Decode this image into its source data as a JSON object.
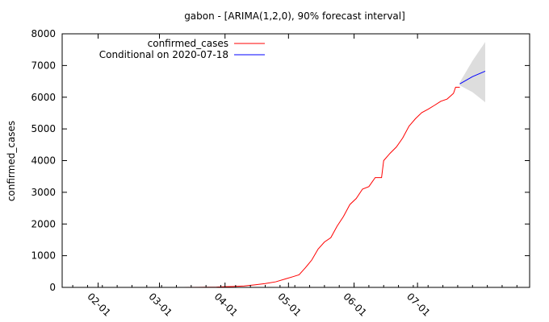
{
  "chart_data": {
    "type": "line",
    "title": "gabon -  [ARIMA(1,2,0), 90% forecast interval]",
    "xlabel": "",
    "ylabel": "confirmed_cases",
    "x_type": "date",
    "xlim": [
      "2020-01-15",
      "2020-08-23"
    ],
    "ylim": [
      0,
      8000
    ],
    "y_ticks": [
      0,
      1000,
      2000,
      3000,
      4000,
      5000,
      6000,
      7000,
      8000
    ],
    "y_tick_labels": [
      "0",
      "1000",
      "2000",
      "3000",
      "4000",
      "5000",
      "6000",
      "7000",
      "8000"
    ],
    "x_ticks": [
      "2020-02-01",
      "2020-03-01",
      "2020-04-01",
      "2020-05-01",
      "2020-06-01",
      "2020-07-01"
    ],
    "x_tick_labels": [
      "02-01",
      "03-01",
      "04-01",
      "05-01",
      "06-01",
      "07-01"
    ],
    "grid": false,
    "legend_position": "top-left",
    "colors": {
      "observed": "#ff0000",
      "forecast": "#0000ff",
      "interval": "#dddddd"
    },
    "series": [
      {
        "name": "confirmed_cases",
        "role": "observed",
        "points": [
          {
            "x": "2020-03-12",
            "y": 1
          },
          {
            "x": "2020-03-20",
            "y": 4
          },
          {
            "x": "2020-03-28",
            "y": 9
          },
          {
            "x": "2020-04-01",
            "y": 21
          },
          {
            "x": "2020-04-05",
            "y": 30
          },
          {
            "x": "2020-04-10",
            "y": 46
          },
          {
            "x": "2020-04-15",
            "y": 80
          },
          {
            "x": "2020-04-20",
            "y": 120
          },
          {
            "x": "2020-04-25",
            "y": 176
          },
          {
            "x": "2020-04-30",
            "y": 276
          },
          {
            "x": "2020-05-03",
            "y": 335
          },
          {
            "x": "2020-05-06",
            "y": 397
          },
          {
            "x": "2020-05-09",
            "y": 620
          },
          {
            "x": "2020-05-12",
            "y": 863
          },
          {
            "x": "2020-05-15",
            "y": 1209
          },
          {
            "x": "2020-05-18",
            "y": 1432
          },
          {
            "x": "2020-05-21",
            "y": 1567
          },
          {
            "x": "2020-05-24",
            "y": 1934
          },
          {
            "x": "2020-05-27",
            "y": 2238
          },
          {
            "x": "2020-05-30",
            "y": 2613
          },
          {
            "x": "2020-06-02",
            "y": 2803
          },
          {
            "x": "2020-06-05",
            "y": 3101
          },
          {
            "x": "2020-06-08",
            "y": 3180
          },
          {
            "x": "2020-06-11",
            "y": 3463
          },
          {
            "x": "2020-06-14",
            "y": 3463
          },
          {
            "x": "2020-06-15",
            "y": 4000
          },
          {
            "x": "2020-06-18",
            "y": 4229
          },
          {
            "x": "2020-06-21",
            "y": 4428
          },
          {
            "x": "2020-06-24",
            "y": 4714
          },
          {
            "x": "2020-06-27",
            "y": 5087
          },
          {
            "x": "2020-06-30",
            "y": 5320
          },
          {
            "x": "2020-07-03",
            "y": 5513
          },
          {
            "x": "2020-07-06",
            "y": 5620
          },
          {
            "x": "2020-07-09",
            "y": 5743
          },
          {
            "x": "2020-07-12",
            "y": 5871
          },
          {
            "x": "2020-07-15",
            "y": 5942
          },
          {
            "x": "2020-07-18",
            "y": 6121
          },
          {
            "x": "2020-07-19",
            "y": 6315
          },
          {
            "x": "2020-07-21",
            "y": 6315
          }
        ]
      },
      {
        "name": "Conditional on 2020-07-18",
        "role": "forecast",
        "points": [
          {
            "x": "2020-07-21",
            "y": 6420
          },
          {
            "x": "2020-07-27",
            "y": 6650
          },
          {
            "x": "2020-08-02",
            "y": 6820
          }
        ],
        "interval_upper": [
          {
            "x": "2020-07-21",
            "y": 6470
          },
          {
            "x": "2020-07-27",
            "y": 7150
          },
          {
            "x": "2020-08-02",
            "y": 7740
          }
        ],
        "interval_lower": [
          {
            "x": "2020-07-21",
            "y": 6370
          },
          {
            "x": "2020-07-27",
            "y": 6160
          },
          {
            "x": "2020-08-02",
            "y": 5840
          }
        ]
      }
    ]
  }
}
